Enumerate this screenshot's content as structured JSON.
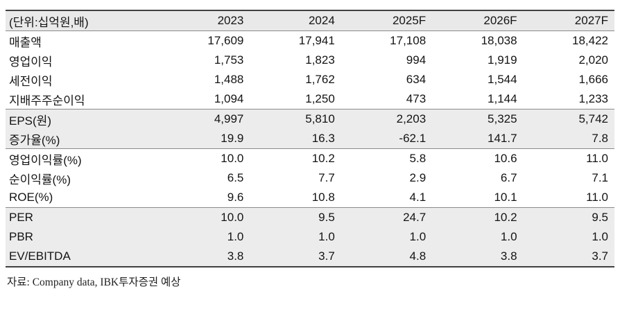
{
  "chart_data": {
    "type": "table",
    "unit_label": "(단위:십억원,배)",
    "columns": [
      "2023",
      "2024",
      "2025F",
      "2026F",
      "2027F"
    ],
    "rows": [
      {
        "label": "매출액",
        "values": [
          "17,609",
          "17,941",
          "17,108",
          "18,038",
          "18,422"
        ],
        "shaded": false,
        "group_end": false
      },
      {
        "label": "영업이익",
        "values": [
          "1,753",
          "1,823",
          "994",
          "1,919",
          "2,020"
        ],
        "shaded": false,
        "group_end": false
      },
      {
        "label": "세전이익",
        "values": [
          "1,488",
          "1,762",
          "634",
          "1,544",
          "1,666"
        ],
        "shaded": false,
        "group_end": false
      },
      {
        "label": "지배주주순이익",
        "values": [
          "1,094",
          "1,250",
          "473",
          "1,144",
          "1,233"
        ],
        "shaded": false,
        "group_end": true
      },
      {
        "label": "EPS(원)",
        "values": [
          "4,997",
          "5,810",
          "2,203",
          "5,325",
          "5,742"
        ],
        "shaded": true,
        "group_end": false
      },
      {
        "label": "증가율(%)",
        "values": [
          "19.9",
          "16.3",
          "-62.1",
          "141.7",
          "7.8"
        ],
        "shaded": true,
        "group_end": true
      },
      {
        "label": "영업이익률(%)",
        "values": [
          "10.0",
          "10.2",
          "5.8",
          "10.6",
          "11.0"
        ],
        "shaded": false,
        "group_end": false
      },
      {
        "label": "순이익률(%)",
        "values": [
          "6.5",
          "7.7",
          "2.9",
          "6.7",
          "7.1"
        ],
        "shaded": false,
        "group_end": false
      },
      {
        "label": "ROE(%)",
        "values": [
          "9.6",
          "10.8",
          "4.1",
          "10.1",
          "11.0"
        ],
        "shaded": false,
        "group_end": true
      },
      {
        "label": "PER",
        "values": [
          "10.0",
          "9.5",
          "24.7",
          "10.2",
          "9.5"
        ],
        "shaded": true,
        "group_end": false
      },
      {
        "label": "PBR",
        "values": [
          "1.0",
          "1.0",
          "1.0",
          "1.0",
          "1.0"
        ],
        "shaded": true,
        "group_end": false
      },
      {
        "label": "EV/EBITDA",
        "values": [
          "3.8",
          "3.7",
          "4.8",
          "3.8",
          "3.7"
        ],
        "shaded": true,
        "group_end": true
      }
    ],
    "source": "자료: Company data, IBK투자증권 예상",
    "colors": {
      "header_bg": "#e9e9e9",
      "shaded_row_bg": "#ececec",
      "border_strong": "#404040",
      "border_light": "#8a8a8a",
      "text": "#141414"
    },
    "title": "",
    "legend_position": "none",
    "grid": "row-group-separators"
  }
}
